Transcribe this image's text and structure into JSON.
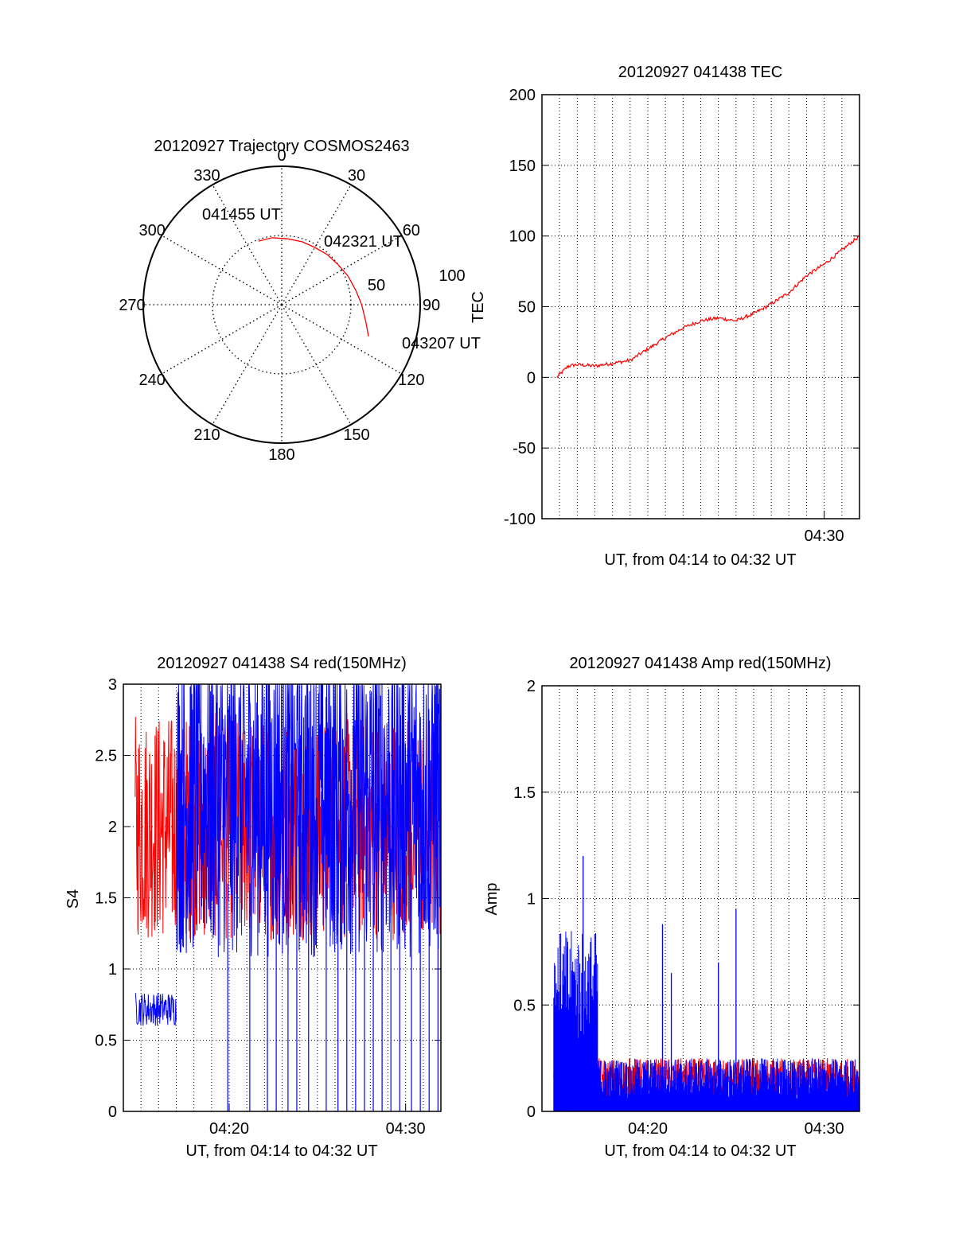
{
  "colors": {
    "red": "#ff0000",
    "blue": "#0000ff",
    "axis": "#000000",
    "grid": "#000000"
  },
  "chart_data": [
    {
      "id": "trajectory",
      "type": "polar",
      "title": "20120927 Trajectory COSMOS2463",
      "angle_labels": [
        "0",
        "30",
        "60",
        "90",
        "120",
        "150",
        "180",
        "210",
        "240",
        "270",
        "300",
        "330"
      ],
      "radius_labels": [
        "50",
        "100"
      ],
      "radius_axis_label": "TEC",
      "trajectory": {
        "color": "red",
        "points": [
          {
            "az": 340,
            "el": 46
          },
          {
            "az": 352,
            "el": 46
          },
          {
            "az": 5,
            "el": 47
          },
          {
            "az": 18,
            "el": 47
          },
          {
            "az": 30,
            "el": 47
          },
          {
            "az": 42,
            "el": 46
          },
          {
            "az": 55,
            "el": 45
          },
          {
            "az": 67,
            "el": 43
          },
          {
            "az": 79,
            "el": 41
          },
          {
            "az": 90,
            "el": 38
          },
          {
            "az": 102,
            "el": 34
          },
          {
            "az": 110,
            "el": 30
          }
        ]
      },
      "annotations": [
        {
          "text": "041455 UT",
          "az": 340,
          "el": 46
        },
        {
          "text": "042321 UT",
          "az": 40,
          "el": 46
        },
        {
          "text": "043207 UT",
          "az": 110,
          "el": 30
        }
      ]
    },
    {
      "id": "tec",
      "type": "line",
      "title": "20120927 041438 TEC",
      "xlabel": "UT, from 04:14 to 04:32 UT",
      "ylabel": "",
      "ylim": [
        -100,
        200
      ],
      "xlim": [
        "04:14",
        "04:32"
      ],
      "y_ticks": [
        "-100",
        "-50",
        "0",
        "50",
        "100",
        "150",
        "200"
      ],
      "x_ticks": [
        "04:30"
      ],
      "grid": true,
      "series": [
        {
          "color": "red",
          "x": [
            "04:14:50",
            "04:15:30",
            "04:16:00",
            "04:17:00",
            "04:18:00",
            "04:19:00",
            "04:20:00",
            "04:21:00",
            "04:22:00",
            "04:23:00",
            "04:24:00",
            "04:25:00",
            "04:26:00",
            "04:27:00",
            "04:28:00",
            "04:29:00",
            "04:30:00",
            "04:31:00",
            "04:32:00"
          ],
          "y": [
            0,
            8,
            9,
            8,
            10,
            12,
            20,
            28,
            35,
            40,
            42,
            40,
            45,
            52,
            60,
            72,
            80,
            90,
            100
          ]
        }
      ]
    },
    {
      "id": "s4",
      "type": "line",
      "title": "20120927 041438 S4 red(150MHz)",
      "xlabel": "UT, from 04:14 to 04:32 UT",
      "ylabel": "S4",
      "ylim": [
        0,
        3
      ],
      "xlim": [
        "04:14",
        "04:32"
      ],
      "y_ticks": [
        "0",
        "0.5",
        "1",
        "1.5",
        "2",
        "2.5",
        "3"
      ],
      "x_ticks": [
        "04:20",
        "04:30"
      ],
      "grid": true,
      "series": [
        {
          "color": "red",
          "x_range": [
            "04:14:40",
            "04:32:00"
          ],
          "y_level": 2.0,
          "y_spread": 0.5
        },
        {
          "color": "blue",
          "segments": [
            {
              "x_range": [
                "04:14:40",
                "04:17:00"
              ],
              "y_level": 0.72,
              "y_spread": 0.1
            },
            {
              "x_range": [
                "04:17:00",
                "04:32:00"
              ],
              "y_level": 2.2,
              "y_spread": 0.8
            }
          ]
        }
      ]
    },
    {
      "id": "amp",
      "type": "line",
      "title": "20120927 041438 Amp red(150MHz)",
      "xlabel": "UT, from 04:14 to 04:32 UT",
      "ylabel": "Amp",
      "ylim": [
        0,
        2
      ],
      "xlim": [
        "04:14",
        "04:32"
      ],
      "y_ticks": [
        "0",
        "0.5",
        "1",
        "1.5",
        "2"
      ],
      "x_ticks": [
        "04:20",
        "04:30"
      ],
      "grid": true,
      "series": [
        {
          "color": "red",
          "x_range": [
            "04:14:40",
            "04:32:00"
          ],
          "y_level": 0.15,
          "y_spread": 0.1
        },
        {
          "color": "blue",
          "segments": [
            {
              "x_range": [
                "04:14:40",
                "04:17:10"
              ],
              "y_level": 0.55,
              "y_spread": 0.3
            },
            {
              "x_range": [
                "04:17:10",
                "04:32:00"
              ],
              "y_level": 0.15,
              "y_spread": 0.1
            }
          ],
          "peaks": [
            {
              "x": "04:16:20",
              "y": 1.2
            },
            {
              "x": "04:20:50",
              "y": 0.88
            },
            {
              "x": "04:21:20",
              "y": 0.65
            },
            {
              "x": "04:24:00",
              "y": 0.7
            },
            {
              "x": "04:25:00",
              "y": 0.95
            }
          ]
        }
      ]
    }
  ]
}
